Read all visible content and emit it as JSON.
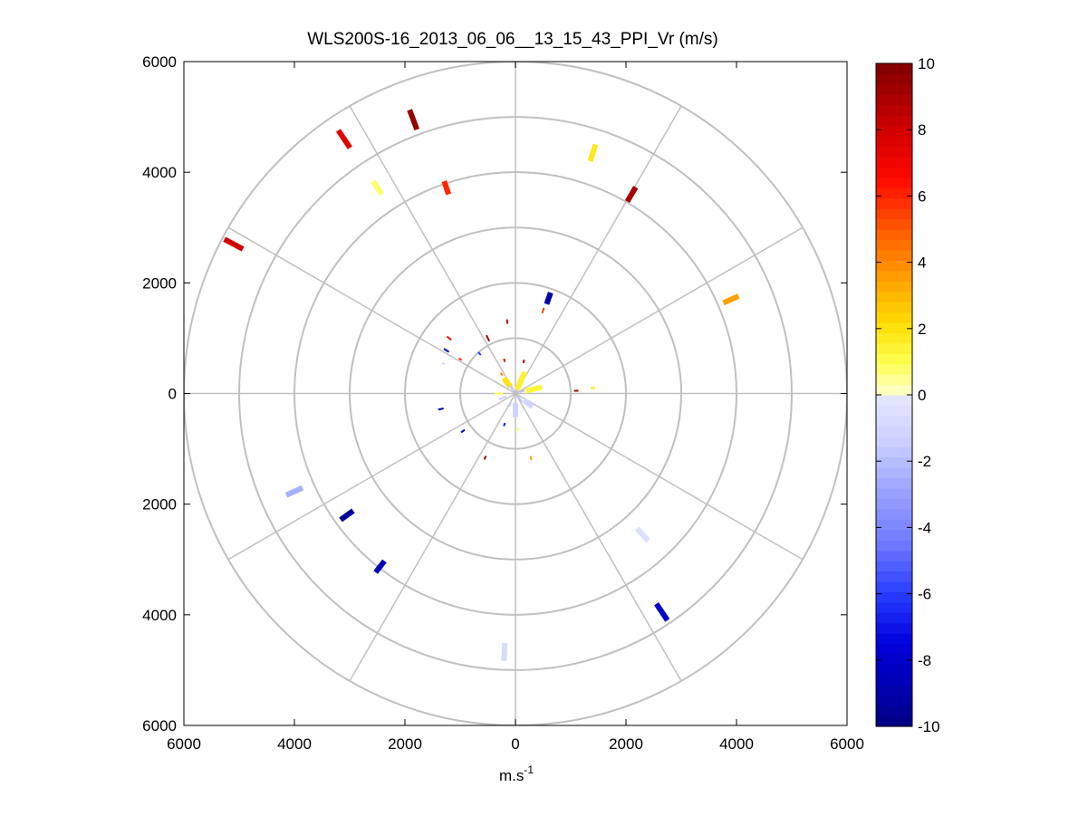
{
  "chart_data": {
    "type": "scatter",
    "title": "WLS200S-16_2013_06_06__13_15_43_PPI_Vr (m/s)",
    "xlabel": "m.s",
    "xlabel_superscript": "-1",
    "ylabel": "",
    "xlim": [
      -6000,
      6000
    ],
    "ylim": [
      -6000,
      6000
    ],
    "x_tick_labels": [
      "6000",
      "4000",
      "2000",
      "0",
      "2000",
      "4000",
      "6000"
    ],
    "y_tick_labels": [
      "6000",
      "4000",
      "2000",
      "0",
      "2000",
      "4000",
      "6000"
    ],
    "polar_grid": {
      "range_rings": [
        1000,
        2000,
        3000,
        4000,
        5000,
        6000
      ],
      "spokes_deg": [
        0,
        30,
        60,
        90,
        120,
        150,
        180,
        210,
        240,
        270,
        300,
        330
      ]
    },
    "grid": true,
    "colorbar": {
      "label": "",
      "min": -10,
      "max": 10,
      "ticks": [
        10,
        8,
        6,
        4,
        2,
        0,
        -2,
        -4,
        -6,
        -8,
        -10
      ],
      "position": "right"
    },
    "points": [
      {
        "x": -1850,
        "y": 4950,
        "v": 9.5,
        "len": 380
      },
      {
        "x": -3100,
        "y": 4600,
        "v": 7.5,
        "len": 380
      },
      {
        "x": -1250,
        "y": 3720,
        "v": 6.0,
        "len": 250
      },
      {
        "x": -2500,
        "y": 3720,
        "v": 0.8,
        "len": 280
      },
      {
        "x": -5100,
        "y": 2700,
        "v": 8.0,
        "len": 380
      },
      {
        "x": 1400,
        "y": 4350,
        "v": 1.8,
        "len": 320
      },
      {
        "x": 2100,
        "y": 3600,
        "v": 9.0,
        "len": 300
      },
      {
        "x": 3900,
        "y": 1700,
        "v": 3.5,
        "len": 300
      },
      {
        "x": 600,
        "y": 1720,
        "v": -9.0,
        "len": 220
      },
      {
        "x": 500,
        "y": 1500,
        "v": 5.5,
        "len": 100
      },
      {
        "x": -150,
        "y": 1300,
        "v": 8.5,
        "len": 80
      },
      {
        "x": -500,
        "y": 1000,
        "v": 9.5,
        "len": 120
      },
      {
        "x": -1200,
        "y": 1000,
        "v": 7.0,
        "len": 100
      },
      {
        "x": -1250,
        "y": 780,
        "v": -8.0,
        "len": 110
      },
      {
        "x": -650,
        "y": 720,
        "v": -6.0,
        "len": 70
      },
      {
        "x": -1000,
        "y": 620,
        "v": 6.0,
        "len": 60
      },
      {
        "x": -1300,
        "y": 540,
        "v": -1.0,
        "len": 60
      },
      {
        "x": -200,
        "y": 600,
        "v": 7.5,
        "len": 60
      },
      {
        "x": 150,
        "y": 580,
        "v": 9.0,
        "len": 60
      },
      {
        "x": -250,
        "y": 350,
        "v": 4.0,
        "len": 60
      },
      {
        "x": 1100,
        "y": 50,
        "v": 9.5,
        "len": 80
      },
      {
        "x": 1400,
        "y": 100,
        "v": 2.0,
        "len": 80
      },
      {
        "x": -1350,
        "y": -280,
        "v": -8.5,
        "len": 100
      },
      {
        "x": -950,
        "y": -680,
        "v": -8.0,
        "len": 80
      },
      {
        "x": -200,
        "y": -560,
        "v": -7.0,
        "len": 60
      },
      {
        "x": 50,
        "y": -650,
        "v": 0.8,
        "len": 60
      },
      {
        "x": -550,
        "y": -1160,
        "v": 9.0,
        "len": 70
      },
      {
        "x": 280,
        "y": -1170,
        "v": 3.5,
        "len": 70
      },
      {
        "x": -4000,
        "y": -1770,
        "v": -2.5,
        "len": 320
      },
      {
        "x": -3050,
        "y": -2200,
        "v": -9.5,
        "len": 280
      },
      {
        "x": -2450,
        "y": -3130,
        "v": -8.5,
        "len": 260
      },
      {
        "x": -200,
        "y": -4670,
        "v": -0.8,
        "len": 320
      },
      {
        "x": 2300,
        "y": -2550,
        "v": -0.5,
        "len": 300
      },
      {
        "x": 2650,
        "y": -3950,
        "v": -8.0,
        "len": 360
      },
      {
        "x": 100,
        "y": 230,
        "v": 1.5,
        "len": 350
      },
      {
        "x": -150,
        "y": 200,
        "v": 2.0,
        "len": 200
      },
      {
        "x": 330,
        "y": 80,
        "v": 1.3,
        "len": 300
      },
      {
        "x": -300,
        "y": 0,
        "v": 1.0,
        "len": 150
      },
      {
        "x": -230,
        "y": -80,
        "v": -1.5,
        "len": 150
      },
      {
        "x": 0,
        "y": -300,
        "v": -1.2,
        "len": 250
      },
      {
        "x": 230,
        "y": -180,
        "v": -1.0,
        "len": 200
      },
      {
        "x": 80,
        "y": -100,
        "v": -1.8,
        "len": 120
      },
      {
        "x": -80,
        "y": 100,
        "v": -1.4,
        "len": 120
      },
      {
        "x": 120,
        "y": 40,
        "v": -2.0,
        "len": 100
      },
      {
        "x": -100,
        "y": -200,
        "v": -1.6,
        "len": 100
      }
    ]
  }
}
